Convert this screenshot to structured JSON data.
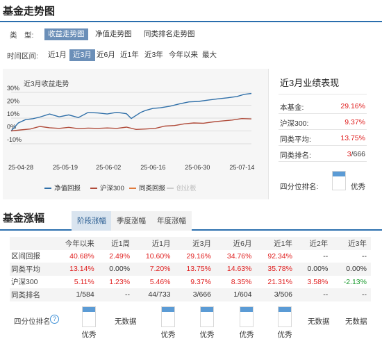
{
  "section1": {
    "title": "基金走势图",
    "type_label": "类　型:",
    "type_buttons": [
      "收益走势图",
      "净值走势图",
      "同类排名走势图"
    ],
    "interval_label": "时间区间:",
    "interval_buttons": [
      "近1月",
      "近3月",
      "近6月",
      "近1年",
      "近3年",
      "今年以来",
      "最大"
    ],
    "chart_title": "近3月收益走势",
    "legend": [
      "净值回报",
      "沪深300",
      "同类回报",
      "创业板"
    ]
  },
  "colors": {
    "fund": "#2f6fa8",
    "hs300": "#b04b3a",
    "peer": "#e07a3c",
    "chinext": "#cccccc",
    "active_btn": "#6b8fb8",
    "quartile": "#5b9bd5",
    "positive": "#e02020",
    "negative": "#1a9b2e"
  },
  "chart_data": {
    "type": "line",
    "title": "近3月收益走势",
    "x_ticks": [
      "25-04-28",
      "25-05-19",
      "25-06-02",
      "25-06-16",
      "25-06-30",
      "25-07-14"
    ],
    "y_ticks": [
      "30%",
      "20%",
      "10%",
      "0%",
      "-10%"
    ],
    "ylim": [
      -10,
      30
    ],
    "x_range": [
      0,
      100
    ],
    "grid": true,
    "legend_position": "bottom",
    "series": [
      {
        "name": "净值回报",
        "x": [
          0,
          3,
          6,
          9,
          12,
          16,
          20,
          24,
          28,
          32,
          36,
          40,
          44,
          48,
          50,
          54,
          56,
          59,
          62,
          66,
          70,
          74,
          78,
          82,
          86,
          90,
          94,
          97,
          100
        ],
        "values": [
          0.0,
          6.2,
          8.8,
          9.5,
          10.8,
          13.2,
          11.0,
          12.5,
          10.4,
          14.4,
          14.0,
          13.2,
          14.5,
          13.4,
          9.7,
          14.5,
          16.0,
          17.5,
          18.0,
          19.2,
          21.0,
          22.6,
          23.0,
          24.0,
          25.0,
          25.8,
          26.8,
          28.5,
          29.16
        ]
      },
      {
        "name": "沪深300",
        "x": [
          0,
          4,
          8,
          12,
          16,
          20,
          24,
          28,
          32,
          36,
          40,
          44,
          48,
          52,
          56,
          60,
          64,
          68,
          72,
          76,
          80,
          84,
          88,
          92,
          96,
          100
        ],
        "values": [
          0.0,
          0.8,
          1.5,
          3.5,
          2.5,
          2.0,
          2.8,
          1.8,
          2.2,
          2.0,
          2.3,
          2.0,
          3.0,
          1.2,
          1.5,
          2.0,
          3.8,
          4.2,
          5.5,
          6.2,
          6.0,
          7.0,
          7.8,
          8.5,
          9.6,
          9.37
        ]
      }
    ]
  },
  "performance": {
    "title": "近3月业绩表现",
    "rows": [
      {
        "label": "本基金:",
        "value": "29.16%"
      },
      {
        "label": "沪深300:",
        "value": "9.37%"
      },
      {
        "label": "同类平均:",
        "value": "13.75%"
      },
      {
        "label": "同类排名:",
        "value_strong": "3",
        "value_rest": "/666"
      }
    ],
    "quartile_label": "四分位排名:",
    "quartile_text": "优秀",
    "quartile_level": 0.25
  },
  "section2": {
    "title": "基金涨幅",
    "tabs": [
      "阶段涨幅",
      "季度涨幅",
      "年度涨幅"
    ],
    "columns": [
      "今年以来",
      "近1周",
      "近1月",
      "近3月",
      "近6月",
      "近1年",
      "近2年",
      "近3年"
    ],
    "rows": [
      {
        "label": "区间回报",
        "cells": [
          "40.68%",
          "2.49%",
          "10.60%",
          "29.16%",
          "34.76%",
          "92.34%",
          "--",
          "--"
        ]
      },
      {
        "label": "同类平均",
        "cells": [
          "13.14%",
          "0.00%",
          "7.20%",
          "13.75%",
          "14.63%",
          "35.78%",
          "0.00%",
          "0.00%"
        ]
      },
      {
        "label": "沪深300",
        "cells": [
          "5.11%",
          "1.23%",
          "5.46%",
          "9.37%",
          "8.35%",
          "21.31%",
          "3.58%",
          "-2.13%"
        ]
      },
      {
        "label": "同类排名",
        "cells": [
          "1/584",
          "--",
          "44/733",
          "3/666",
          "1/604",
          "3/506",
          "--",
          "--"
        ]
      }
    ],
    "quartile_label": "四分位排名",
    "help_icon": "?",
    "quartiles": [
      "优秀",
      "无数据",
      "优秀",
      "优秀",
      "优秀",
      "优秀",
      "无数据",
      "无数据"
    ]
  }
}
